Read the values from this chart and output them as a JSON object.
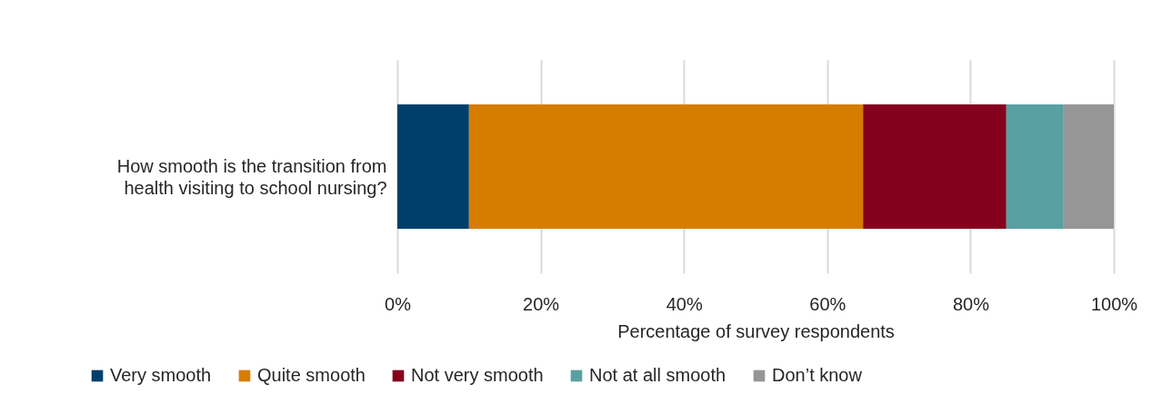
{
  "chart_data": {
    "type": "bar",
    "orientation": "horizontal",
    "stacked": true,
    "categories": [
      "How smooth is the transition from health visiting to school nursing?"
    ],
    "xlabel": "Percentage of survey respondents",
    "xlim": [
      0,
      100
    ],
    "xticks": [
      {
        "value": 0,
        "label": "0%"
      },
      {
        "value": 20,
        "label": "20%"
      },
      {
        "value": 40,
        "label": "40%"
      },
      {
        "value": 60,
        "label": "60%"
      },
      {
        "value": 80,
        "label": "80%"
      },
      {
        "value": 100,
        "label": "100%"
      }
    ],
    "grid": "x",
    "legend": "bottom",
    "series": [
      {
        "name": "Very smooth",
        "color": "#003f6b",
        "values": [
          10
        ]
      },
      {
        "name": "Quite smooth",
        "color": "#d67d00",
        "values": [
          55
        ]
      },
      {
        "name": "Not very smooth",
        "color": "#85001d",
        "values": [
          20
        ]
      },
      {
        "name": "Not at all smooth",
        "color": "#58a0a2",
        "values": [
          8
        ]
      },
      {
        "name": "Don’t know",
        "color": "#969696",
        "values": [
          7
        ]
      }
    ]
  }
}
